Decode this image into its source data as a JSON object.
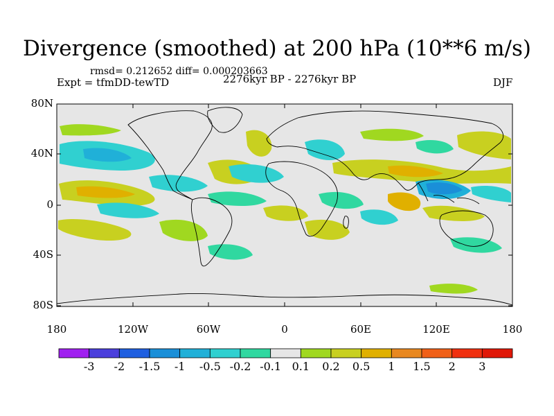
{
  "title": "Divergence (smoothed) at 200 hPa (10**6 m/s)",
  "stats": "rmsd= 0.212652 diff= 0.000203663",
  "experiment": "Expt = tfmDD-tewTD",
  "period": "2276kyr BP - 2276kyr BP",
  "season": "DJF",
  "lat_labels": [
    "80N",
    "40N",
    "0",
    "40S",
    "80S"
  ],
  "lon_labels": [
    "180",
    "120W",
    "60W",
    "0",
    "60E",
    "120E",
    "180"
  ],
  "colorbar": {
    "labels": [
      "-3",
      "-2",
      "-1.5",
      "-1",
      "-0.5",
      "-0.2",
      "-0.1",
      "0.1",
      "0.2",
      "0.5",
      "1",
      "1.5",
      "2",
      "3"
    ],
    "colors": [
      "#a020f0",
      "#4b3fdc",
      "#1f5fe0",
      "#1a8fd8",
      "#20b0d8",
      "#30d0d0",
      "#30d8a0",
      "#e6e6e6",
      "#a0d820",
      "#c8d020",
      "#e0b000",
      "#e88820",
      "#f06018",
      "#f03010",
      "#e01808"
    ]
  },
  "colors": {
    "neutral": "#e6e6e6",
    "pos_weak": "#a0d820",
    "pos_mid": "#c8d020",
    "pos_strong": "#e0b000",
    "neg_weak": "#30d8a0",
    "neg_mid": "#30d0d0",
    "neg_strong": "#20b0d8"
  }
}
